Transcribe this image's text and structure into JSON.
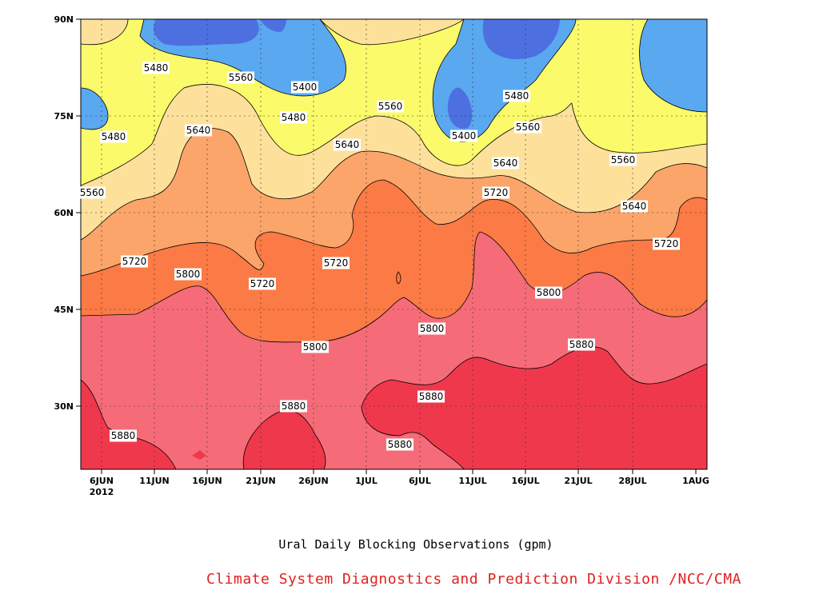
{
  "chart_data": {
    "type": "contour",
    "title": "Ural Daily Blocking Observations (gpm)",
    "credit": "Climate System Diagnostics and Prediction Division /NCC/CMA",
    "x_ticks": [
      "6JUN",
      "11JUN",
      "16JUN",
      "21JUN",
      "26JUN",
      "1JUL",
      "6JUL",
      "11JUL",
      "16JUL",
      "21JUL",
      "28JUL",
      "1AUG"
    ],
    "x_year": "2012",
    "y_ticks": [
      "90N",
      "75N",
      "60N",
      "45N",
      "30N"
    ],
    "contour_levels": [
      5400,
      5480,
      5560,
      5640,
      5720,
      5800,
      5880
    ],
    "fill_colors": {
      "below_5400": "#4d6fe0",
      "5400_5480": "#5aa8f0",
      "5480_5560": "#fbfa6a",
      "5560_5640": "#fde19b",
      "5640_5720": "#fba56a",
      "5720_5800": "#fb7a45",
      "5800_5880": "#f56c78",
      "above_5880": "#f0384c"
    },
    "contour_labels": [
      {
        "text": "5480"
      },
      {
        "text": "5560"
      },
      {
        "text": "5400"
      },
      {
        "text": "5480"
      },
      {
        "text": "5560"
      },
      {
        "text": "5480"
      },
      {
        "text": "5400"
      },
      {
        "text": "5480"
      },
      {
        "text": "5560"
      },
      {
        "text": "5640"
      },
      {
        "text": "5640"
      },
      {
        "text": "5560"
      },
      {
        "text": "5640"
      },
      {
        "text": "5720"
      },
      {
        "text": "5560"
      },
      {
        "text": "5640"
      },
      {
        "text": "5720"
      },
      {
        "text": "5720"
      },
      {
        "text": "5800"
      },
      {
        "text": "5720"
      },
      {
        "text": "5720"
      },
      {
        "text": "5800"
      },
      {
        "text": "5800"
      },
      {
        "text": "5800"
      },
      {
        "text": "5880"
      },
      {
        "text": "5880"
      },
      {
        "text": "5880"
      },
      {
        "text": "5880"
      },
      {
        "text": "5880"
      }
    ]
  }
}
